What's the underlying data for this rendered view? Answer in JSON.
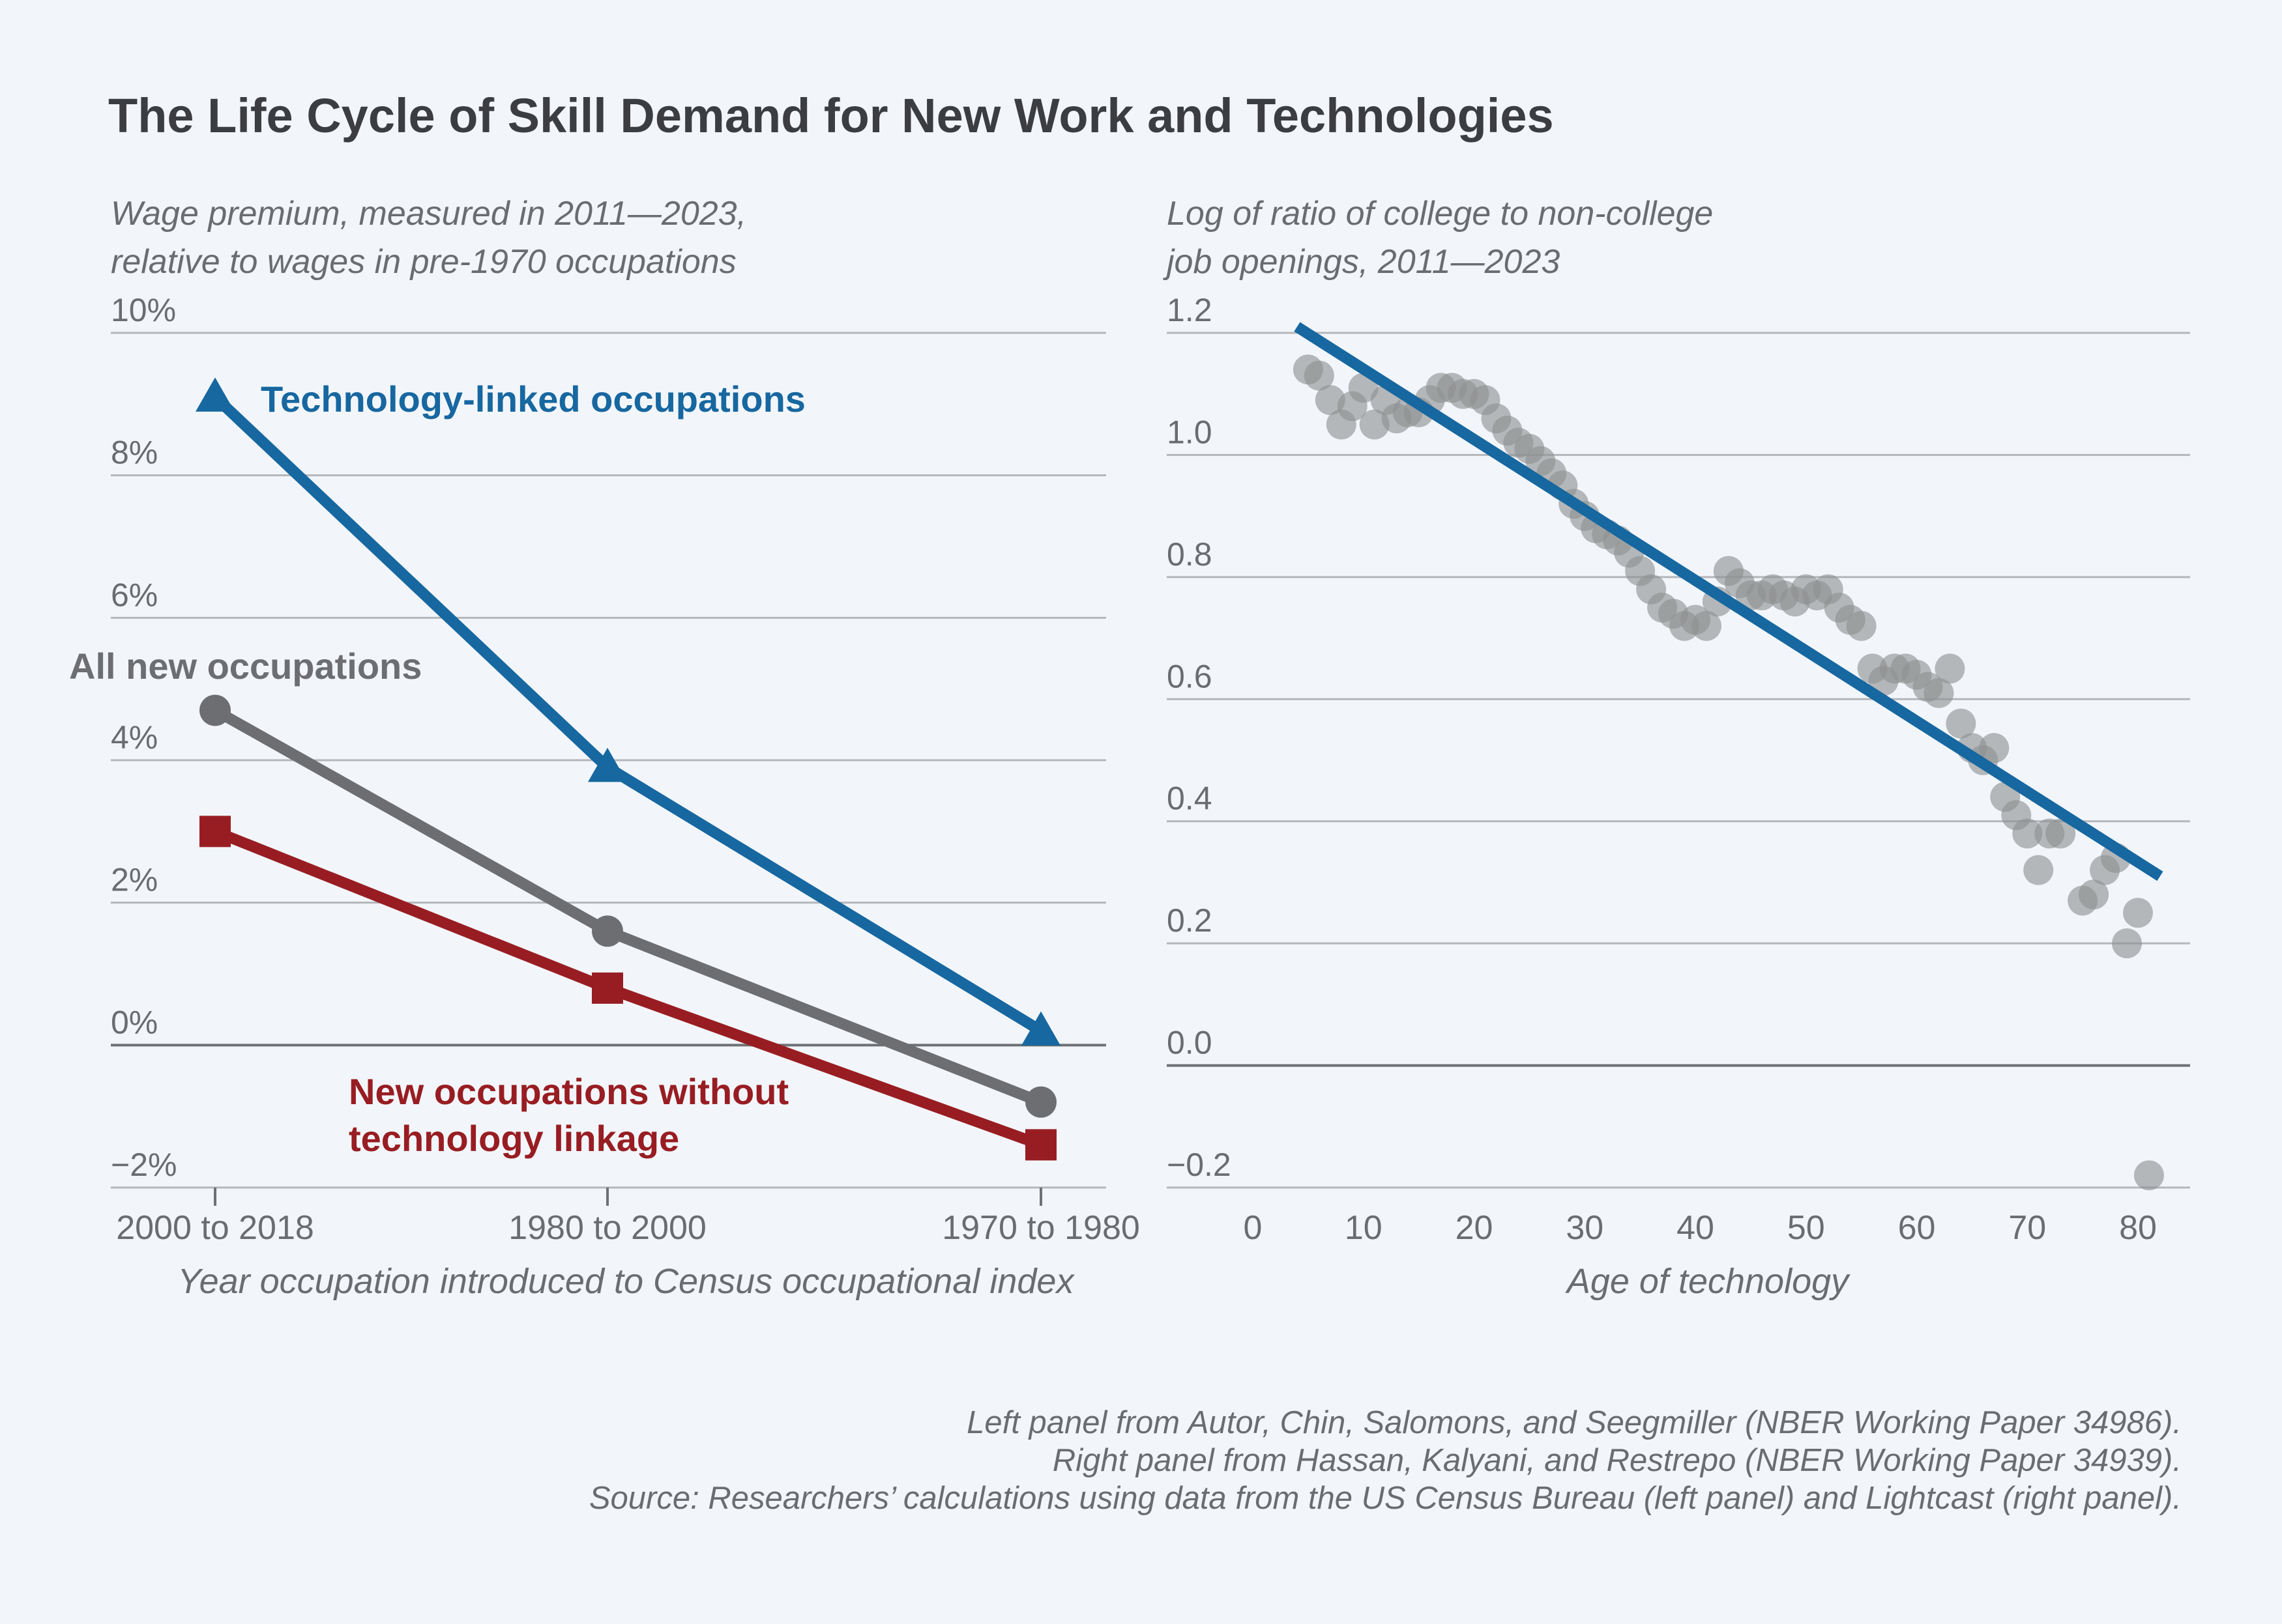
{
  "title": "The Life Cycle of Skill Demand for New Work and Technologies",
  "colors": {
    "background": "#f2f6fa",
    "title_text": "#3b3d41",
    "axis_text": "#6a6c70",
    "gridline": "#b4b6ba",
    "zero_line": "#6e7074",
    "tech": "#1767a0",
    "all": "#6d6e71",
    "nontech": "#981d22",
    "scatter": "#8e8f92",
    "fit_line": "#1767a0"
  },
  "chart_data": [
    {
      "type": "line",
      "ylabel_lines": [
        "Wage premium, measured in 2011—2023,",
        "relative to wages in pre-1970 occupations"
      ],
      "xlabel": "Year occupation introduced to Census occupational index",
      "categories": [
        "2000 to 2018",
        "1980 to 2000",
        "1970 to 1980"
      ],
      "ylim": [
        -2,
        10
      ],
      "yticks": [
        {
          "value": 10,
          "label": "10%"
        },
        {
          "value": 8,
          "label": "8%"
        },
        {
          "value": 6,
          "label": "6%"
        },
        {
          "value": 4,
          "label": "4%"
        },
        {
          "value": 2,
          "label": "2%"
        },
        {
          "value": 0,
          "label": "0%"
        },
        {
          "value": -2,
          "label": "−2%"
        }
      ],
      "grid": true,
      "series": [
        {
          "id": "tech",
          "name": "Technology-linked occupations",
          "name_lines": [
            "Technology-linked occupations"
          ],
          "marker": "triangle",
          "values": [
            9.1,
            3.9,
            0.2
          ]
        },
        {
          "id": "all",
          "name": "All new occupations",
          "name_lines": [
            "All new occupations"
          ],
          "marker": "circle",
          "values": [
            4.7,
            1.6,
            -0.8
          ]
        },
        {
          "id": "nontech",
          "name": "New occupations without technology linkage",
          "name_lines": [
            "New occupations without",
            "technology linkage"
          ],
          "marker": "square",
          "values": [
            3.0,
            0.8,
            -1.4
          ]
        }
      ]
    },
    {
      "type": "scatter",
      "ylabel_lines": [
        "Log of ratio of college to non-college",
        "job openings, 2011—2023"
      ],
      "xlabel": "Age of technology",
      "xlim": [
        -4,
        84
      ],
      "xticks": [
        0,
        10,
        20,
        30,
        40,
        50,
        60,
        70,
        80
      ],
      "ylim": [
        -0.2,
        1.2
      ],
      "yticks": [
        {
          "value": 1.2,
          "label": "1.2"
        },
        {
          "value": 1.0,
          "label": "1.0"
        },
        {
          "value": 0.8,
          "label": "0.8"
        },
        {
          "value": 0.6,
          "label": "0.6"
        },
        {
          "value": 0.4,
          "label": "0.4"
        },
        {
          "value": 0.2,
          "label": "0.2"
        },
        {
          "value": 0.0,
          "label": "0.0"
        },
        {
          "value": -0.2,
          "label": "−0.2"
        }
      ],
      "grid": true,
      "points": [
        [
          4,
          1.14
        ],
        [
          5,
          1.13
        ],
        [
          6,
          1.09
        ],
        [
          7,
          1.05
        ],
        [
          8,
          1.08
        ],
        [
          9,
          1.11
        ],
        [
          10,
          1.05
        ],
        [
          11,
          1.09
        ],
        [
          12,
          1.06
        ],
        [
          13,
          1.07
        ],
        [
          14,
          1.07
        ],
        [
          15,
          1.09
        ],
        [
          16,
          1.11
        ],
        [
          17,
          1.11
        ],
        [
          18,
          1.1
        ],
        [
          19,
          1.1
        ],
        [
          20,
          1.09
        ],
        [
          21,
          1.06
        ],
        [
          22,
          1.04
        ],
        [
          23,
          1.02
        ],
        [
          24,
          1.01
        ],
        [
          25,
          0.99
        ],
        [
          26,
          0.97
        ],
        [
          27,
          0.95
        ],
        [
          28,
          0.92
        ],
        [
          29,
          0.9
        ],
        [
          30,
          0.88
        ],
        [
          31,
          0.87
        ],
        [
          32,
          0.86
        ],
        [
          33,
          0.84
        ],
        [
          34,
          0.81
        ],
        [
          35,
          0.78
        ],
        [
          36,
          0.75
        ],
        [
          37,
          0.74
        ],
        [
          38,
          0.72
        ],
        [
          39,
          0.73
        ],
        [
          40,
          0.72
        ],
        [
          41,
          0.76
        ],
        [
          42,
          0.81
        ],
        [
          43,
          0.79
        ],
        [
          44,
          0.77
        ],
        [
          45,
          0.77
        ],
        [
          46,
          0.78
        ],
        [
          47,
          0.77
        ],
        [
          48,
          0.76
        ],
        [
          49,
          0.78
        ],
        [
          50,
          0.77
        ],
        [
          51,
          0.78
        ],
        [
          52,
          0.75
        ],
        [
          53,
          0.73
        ],
        [
          54,
          0.72
        ],
        [
          55,
          0.65
        ],
        [
          56,
          0.63
        ],
        [
          57,
          0.65
        ],
        [
          58,
          0.65
        ],
        [
          59,
          0.64
        ],
        [
          60,
          0.62
        ],
        [
          61,
          0.61
        ],
        [
          62,
          0.65
        ],
        [
          63,
          0.56
        ],
        [
          64,
          0.52
        ],
        [
          65,
          0.5
        ],
        [
          66,
          0.52
        ],
        [
          67,
          0.44
        ],
        [
          68,
          0.41
        ],
        [
          69,
          0.38
        ],
        [
          70,
          0.32
        ],
        [
          71,
          0.38
        ],
        [
          72,
          0.38
        ],
        [
          74,
          0.27
        ],
        [
          75,
          0.28
        ],
        [
          76,
          0.32
        ],
        [
          77,
          0.34
        ],
        [
          78,
          0.2
        ],
        [
          79,
          0.25
        ],
        [
          80,
          -0.18
        ]
      ],
      "fit_line": {
        "x": [
          4,
          82
        ],
        "y": [
          1.21,
          0.31
        ]
      }
    }
  ],
  "source_lines": [
    "Left panel from Autor, Chin, Salomons, and Seegmiller (NBER Working Paper 34986).",
    "Right panel from Hassan, Kalyani, and Restrepo (NBER Working Paper 34939).",
    "Source: Researchers’ calculations using data from the US Census Bureau (left panel) and Lightcast (right panel)."
  ]
}
